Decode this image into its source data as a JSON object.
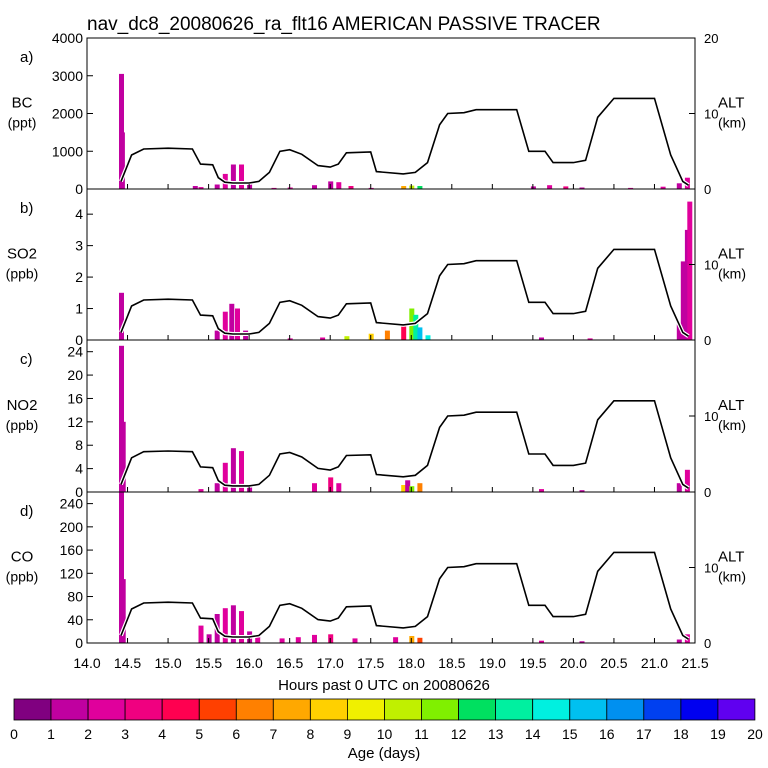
{
  "title": "nav_dc8_20080626_ra_flt16 AMERICAN PASSIVE TRACER",
  "xlabel": "Hours past 0 UTC on 20080626",
  "x_ticks": [
    "14.0",
    "14.5",
    "15.0",
    "15.5",
    "16.0",
    "16.5",
    "17.0",
    "17.5",
    "18.0",
    "18.5",
    "19.0",
    "19.5",
    "20.0",
    "20.5",
    "21.0",
    "21.5"
  ],
  "colorbar": {
    "label": "Age (days)",
    "ticks": [
      "0",
      "1",
      "2",
      "3",
      "4",
      "5",
      "6",
      "7",
      "8",
      "9",
      "10",
      "11",
      "12",
      "13",
      "14",
      "15",
      "16",
      "17",
      "18",
      "19",
      "20"
    ],
    "colors": [
      "#800080",
      "#c000a0",
      "#e0009c",
      "#f00080",
      "#ff0050",
      "#ff4000",
      "#ff8000",
      "#ffa800",
      "#ffd000",
      "#f0f000",
      "#c0f000",
      "#80f000",
      "#00e060",
      "#00f0a0",
      "#00f0e0",
      "#00c0f0",
      "#0090f0",
      "#0040f0",
      "#0000f0",
      "#6000f0"
    ]
  },
  "right_axis": {
    "label": "ALT",
    "unit": "(km)",
    "ticks": [
      "0",
      "10",
      "20"
    ]
  },
  "chart_data": [
    {
      "type": "bar",
      "panel": "a)",
      "ylabel": "BC",
      "yunit": "(ppt)",
      "ylim": [
        0,
        4000
      ],
      "yticks": [
        "0",
        "1000",
        "2000",
        "3000",
        "4000"
      ],
      "right_ticks": [
        "0",
        "10",
        "20"
      ],
      "altitude_km": [
        [
          14.42,
          1.0
        ],
        [
          14.55,
          4.5
        ],
        [
          14.7,
          5.3
        ],
        [
          15.0,
          5.4
        ],
        [
          15.3,
          5.3
        ],
        [
          15.4,
          3.3
        ],
        [
          15.55,
          3.2
        ],
        [
          15.62,
          1.5
        ],
        [
          15.7,
          0.9
        ],
        [
          15.8,
          0.8
        ],
        [
          16.0,
          0.8
        ],
        [
          16.12,
          1.0
        ],
        [
          16.25,
          2.2
        ],
        [
          16.38,
          5.0
        ],
        [
          16.5,
          5.2
        ],
        [
          16.65,
          4.6
        ],
        [
          16.85,
          3.1
        ],
        [
          17.0,
          2.9
        ],
        [
          17.1,
          3.3
        ],
        [
          17.2,
          4.8
        ],
        [
          17.5,
          4.9
        ],
        [
          17.57,
          2.3
        ],
        [
          17.9,
          2.0
        ],
        [
          18.05,
          2.2
        ],
        [
          18.2,
          3.5
        ],
        [
          18.35,
          8.5
        ],
        [
          18.45,
          10.0
        ],
        [
          18.65,
          10.1
        ],
        [
          18.8,
          10.5
        ],
        [
          19.3,
          10.5
        ],
        [
          19.45,
          5.0
        ],
        [
          19.65,
          5.0
        ],
        [
          19.75,
          3.5
        ],
        [
          20.0,
          3.5
        ],
        [
          20.15,
          3.8
        ],
        [
          20.3,
          9.5
        ],
        [
          20.5,
          12.0
        ],
        [
          21.0,
          12.0
        ],
        [
          21.2,
          4.5
        ],
        [
          21.35,
          1.0
        ],
        [
          21.42,
          0.5
        ]
      ],
      "tracer": [
        [
          14.42,
          3050,
          1
        ],
        [
          14.43,
          1500,
          1
        ],
        [
          15.33,
          80,
          1
        ],
        [
          15.4,
          50,
          2
        ],
        [
          15.6,
          120,
          1
        ],
        [
          15.7,
          400,
          2
        ],
        [
          15.8,
          650,
          1
        ],
        [
          15.9,
          650,
          2
        ],
        [
          16.0,
          150,
          1
        ],
        [
          16.3,
          30,
          2
        ],
        [
          16.5,
          40,
          2
        ],
        [
          16.8,
          100,
          1
        ],
        [
          17.0,
          200,
          1
        ],
        [
          17.1,
          180,
          2
        ],
        [
          17.25,
          80,
          3
        ],
        [
          17.5,
          30,
          2
        ],
        [
          17.9,
          80,
          7
        ],
        [
          18.0,
          90,
          10
        ],
        [
          18.1,
          80,
          12
        ],
        [
          19.5,
          70,
          1
        ],
        [
          19.7,
          100,
          2
        ],
        [
          19.9,
          70,
          3
        ],
        [
          20.1,
          40,
          1
        ],
        [
          20.7,
          30,
          2
        ],
        [
          21.1,
          60,
          2
        ],
        [
          21.3,
          150,
          1
        ],
        [
          21.4,
          300,
          2
        ]
      ]
    },
    {
      "type": "bar",
      "panel": "b)",
      "ylabel": "SO2",
      "yunit": "(ppb)",
      "ylim": [
        0,
        4.8
      ],
      "yticks": [
        "0",
        "1",
        "2",
        "3",
        "4"
      ],
      "right_ticks": [
        "0",
        "10"
      ],
      "altitude_km": [
        [
          14.42,
          1.0
        ],
        [
          14.55,
          4.5
        ],
        [
          14.7,
          5.3
        ],
        [
          15.0,
          5.4
        ],
        [
          15.3,
          5.3
        ],
        [
          15.4,
          3.3
        ],
        [
          15.55,
          3.2
        ],
        [
          15.62,
          1.5
        ],
        [
          15.7,
          0.9
        ],
        [
          15.8,
          0.8
        ],
        [
          16.0,
          0.8
        ],
        [
          16.12,
          1.0
        ],
        [
          16.25,
          2.2
        ],
        [
          16.38,
          5.0
        ],
        [
          16.5,
          5.2
        ],
        [
          16.65,
          4.6
        ],
        [
          16.85,
          3.1
        ],
        [
          17.0,
          2.9
        ],
        [
          17.1,
          3.3
        ],
        [
          17.2,
          4.8
        ],
        [
          17.5,
          4.9
        ],
        [
          17.57,
          2.3
        ],
        [
          17.9,
          2.0
        ],
        [
          18.05,
          2.2
        ],
        [
          18.2,
          3.5
        ],
        [
          18.35,
          8.5
        ],
        [
          18.45,
          10.0
        ],
        [
          18.65,
          10.1
        ],
        [
          18.8,
          10.5
        ],
        [
          19.3,
          10.5
        ],
        [
          19.45,
          5.0
        ],
        [
          19.65,
          5.0
        ],
        [
          19.75,
          3.5
        ],
        [
          20.0,
          3.5
        ],
        [
          20.15,
          3.8
        ],
        [
          20.3,
          9.5
        ],
        [
          20.5,
          12.0
        ],
        [
          21.0,
          12.0
        ],
        [
          21.2,
          4.5
        ],
        [
          21.35,
          1.0
        ],
        [
          21.42,
          0.5
        ]
      ],
      "tracer": [
        [
          14.42,
          1.5,
          1
        ],
        [
          15.6,
          0.3,
          1
        ],
        [
          15.7,
          0.9,
          2
        ],
        [
          15.78,
          1.15,
          1
        ],
        [
          15.85,
          1.0,
          2
        ],
        [
          15.95,
          0.3,
          1
        ],
        [
          16.5,
          0.05,
          2
        ],
        [
          16.9,
          0.08,
          2
        ],
        [
          17.2,
          0.12,
          10
        ],
        [
          17.5,
          0.2,
          8
        ],
        [
          17.7,
          0.3,
          6
        ],
        [
          17.9,
          0.5,
          4
        ],
        [
          18.0,
          1.0,
          11
        ],
        [
          18.05,
          0.8,
          13
        ],
        [
          18.1,
          0.4,
          15
        ],
        [
          18.2,
          0.15,
          14
        ],
        [
          19.6,
          0.08,
          1
        ],
        [
          20.2,
          0.05,
          2
        ],
        [
          21.3,
          0.5,
          1
        ],
        [
          21.35,
          2.5,
          1
        ],
        [
          21.4,
          3.5,
          1
        ],
        [
          21.43,
          4.4,
          2
        ]
      ]
    },
    {
      "type": "bar",
      "panel": "c)",
      "ylabel": "NO2",
      "yunit": "(ppb)",
      "ylim": [
        0,
        26
      ],
      "yticks": [
        "0",
        "4",
        "8",
        "12",
        "16",
        "20",
        "24"
      ],
      "right_ticks": [
        "0",
        "10"
      ],
      "altitude_km": [
        [
          14.42,
          1.0
        ],
        [
          14.55,
          4.5
        ],
        [
          14.7,
          5.3
        ],
        [
          15.0,
          5.4
        ],
        [
          15.3,
          5.3
        ],
        [
          15.4,
          3.3
        ],
        [
          15.55,
          3.2
        ],
        [
          15.62,
          1.5
        ],
        [
          15.7,
          0.9
        ],
        [
          15.8,
          0.8
        ],
        [
          16.0,
          0.8
        ],
        [
          16.12,
          1.0
        ],
        [
          16.25,
          2.2
        ],
        [
          16.38,
          5.0
        ],
        [
          16.5,
          5.2
        ],
        [
          16.65,
          4.6
        ],
        [
          16.85,
          3.1
        ],
        [
          17.0,
          2.9
        ],
        [
          17.1,
          3.3
        ],
        [
          17.2,
          4.8
        ],
        [
          17.5,
          4.9
        ],
        [
          17.57,
          2.3
        ],
        [
          17.9,
          2.0
        ],
        [
          18.05,
          2.2
        ],
        [
          18.2,
          3.5
        ],
        [
          18.35,
          8.5
        ],
        [
          18.45,
          10.0
        ],
        [
          18.65,
          10.1
        ],
        [
          18.8,
          10.5
        ],
        [
          19.3,
          10.5
        ],
        [
          19.45,
          5.0
        ],
        [
          19.65,
          5.0
        ],
        [
          19.75,
          3.5
        ],
        [
          20.0,
          3.5
        ],
        [
          20.15,
          3.8
        ],
        [
          20.3,
          9.5
        ],
        [
          20.5,
          12.0
        ],
        [
          21.0,
          12.0
        ],
        [
          21.2,
          4.5
        ],
        [
          21.35,
          1.0
        ],
        [
          21.42,
          0.5
        ]
      ],
      "tracer": [
        [
          14.42,
          25,
          1
        ],
        [
          14.44,
          12,
          1
        ],
        [
          15.4,
          0.5,
          2
        ],
        [
          15.6,
          1.5,
          1
        ],
        [
          15.7,
          5,
          2
        ],
        [
          15.8,
          7.5,
          1
        ],
        [
          15.9,
          7,
          2
        ],
        [
          16.0,
          1,
          1
        ],
        [
          16.8,
          1.5,
          2
        ],
        [
          17.0,
          2.5,
          3
        ],
        [
          17.1,
          1.5,
          2
        ],
        [
          17.9,
          1.2,
          8
        ],
        [
          17.95,
          2.0,
          1
        ],
        [
          18.0,
          1.0,
          11
        ],
        [
          18.1,
          1.5,
          6
        ],
        [
          19.6,
          0.5,
          2
        ],
        [
          20.1,
          0.3,
          1
        ],
        [
          21.3,
          1.5,
          1
        ],
        [
          21.4,
          3.8,
          2
        ]
      ]
    },
    {
      "type": "bar",
      "panel": "d)",
      "ylabel": "CO",
      "yunit": "(ppb)",
      "ylim": [
        0,
        260
      ],
      "yticks": [
        "0",
        "40",
        "80",
        "120",
        "160",
        "200",
        "240"
      ],
      "right_ticks": [
        "0",
        "10"
      ],
      "altitude_km": [
        [
          14.42,
          1.0
        ],
        [
          14.55,
          4.5
        ],
        [
          14.7,
          5.3
        ],
        [
          15.0,
          5.4
        ],
        [
          15.3,
          5.3
        ],
        [
          15.4,
          3.3
        ],
        [
          15.55,
          3.2
        ],
        [
          15.62,
          1.5
        ],
        [
          15.7,
          0.9
        ],
        [
          15.8,
          0.8
        ],
        [
          16.0,
          0.8
        ],
        [
          16.12,
          1.0
        ],
        [
          16.25,
          2.2
        ],
        [
          16.38,
          5.0
        ],
        [
          16.5,
          5.2
        ],
        [
          16.65,
          4.6
        ],
        [
          16.85,
          3.1
        ],
        [
          17.0,
          2.9
        ],
        [
          17.1,
          3.3
        ],
        [
          17.2,
          4.8
        ],
        [
          17.5,
          4.9
        ],
        [
          17.57,
          2.3
        ],
        [
          17.9,
          2.0
        ],
        [
          18.05,
          2.2
        ],
        [
          18.2,
          3.5
        ],
        [
          18.35,
          8.5
        ],
        [
          18.45,
          10.0
        ],
        [
          18.65,
          10.1
        ],
        [
          18.8,
          10.5
        ],
        [
          19.3,
          10.5
        ],
        [
          19.45,
          5.0
        ],
        [
          19.65,
          5.0
        ],
        [
          19.75,
          3.5
        ],
        [
          20.0,
          3.5
        ],
        [
          20.15,
          3.8
        ],
        [
          20.3,
          9.5
        ],
        [
          20.5,
          12.0
        ],
        [
          21.0,
          12.0
        ],
        [
          21.2,
          4.5
        ],
        [
          21.35,
          1.0
        ],
        [
          21.42,
          0.5
        ]
      ],
      "tracer": [
        [
          14.42,
          260,
          1
        ],
        [
          14.44,
          110,
          1
        ],
        [
          15.4,
          30,
          2
        ],
        [
          15.5,
          15,
          1
        ],
        [
          15.6,
          50,
          1
        ],
        [
          15.7,
          60,
          2
        ],
        [
          15.8,
          65,
          1
        ],
        [
          15.9,
          55,
          2
        ],
        [
          16.0,
          20,
          1
        ],
        [
          16.1,
          15,
          2
        ],
        [
          16.4,
          8,
          2
        ],
        [
          16.6,
          10,
          2
        ],
        [
          16.8,
          14,
          2
        ],
        [
          17.0,
          15,
          3
        ],
        [
          17.3,
          8,
          2
        ],
        [
          17.8,
          10,
          2
        ],
        [
          18.0,
          12,
          7
        ],
        [
          18.1,
          9,
          5
        ],
        [
          19.6,
          4,
          2
        ],
        [
          20.1,
          3,
          1
        ],
        [
          21.3,
          6,
          1
        ],
        [
          21.4,
          15,
          2
        ]
      ]
    }
  ]
}
